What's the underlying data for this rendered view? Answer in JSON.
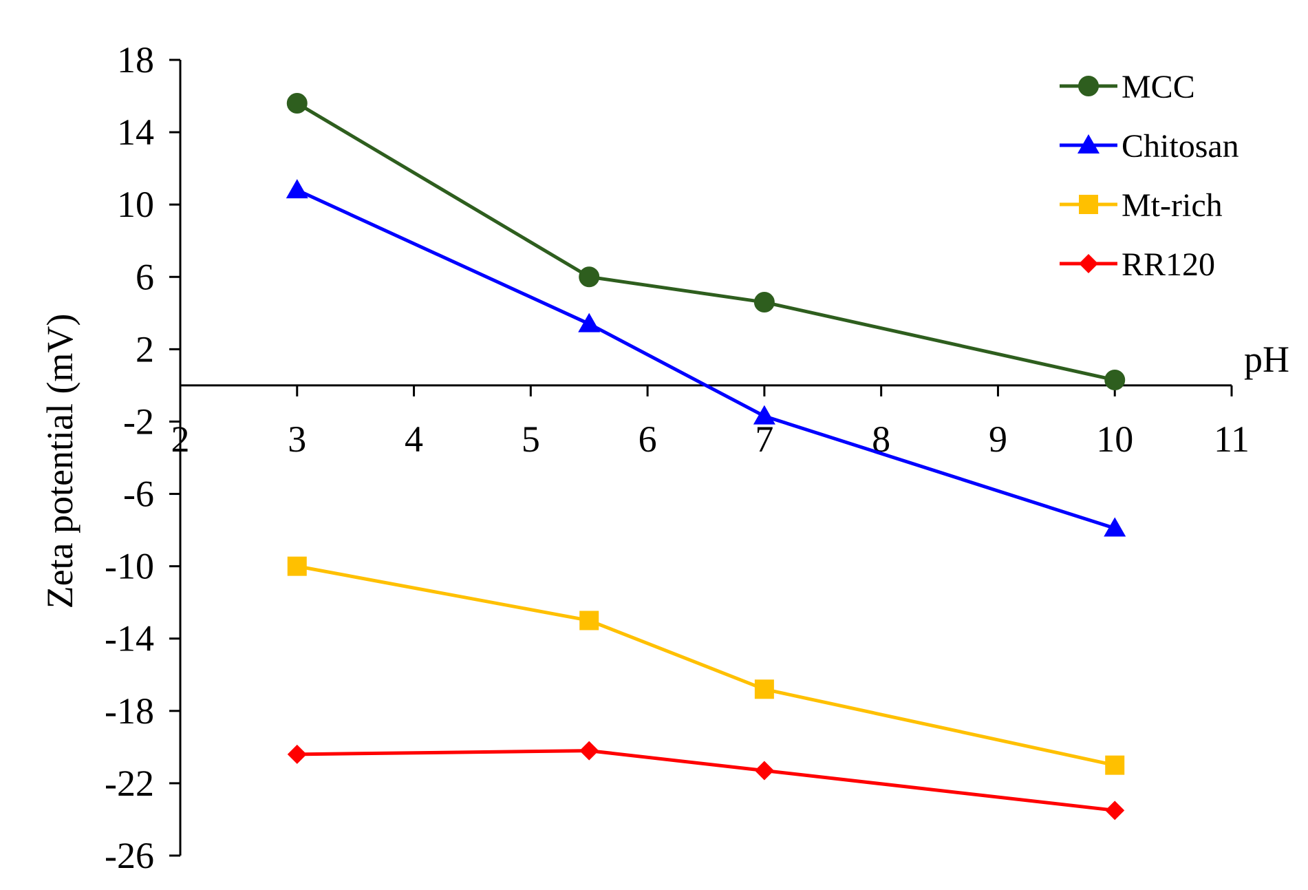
{
  "chart_data": {
    "type": "line",
    "xlabel": "pH",
    "ylabel": "Zeta potential (mV)",
    "xlim": [
      2,
      11
    ],
    "ylim": [
      -26,
      18
    ],
    "xticks": [
      "2",
      "3",
      "4",
      "5",
      "6",
      "7",
      "8",
      "9",
      "10",
      "11"
    ],
    "yticks": [
      "18",
      "14",
      "10",
      "6",
      "2",
      "-2",
      "-6",
      "-10",
      "-14",
      "-18",
      "-22",
      "-26"
    ],
    "x": [
      3,
      5.5,
      7,
      10
    ],
    "x_axis_crosses_y_at": 0,
    "grid": false,
    "legend_position": "top-right",
    "series": [
      {
        "name": "MCC",
        "color": "#2e5e1e",
        "marker": "circle",
        "values": [
          15.6,
          6.0,
          4.6,
          0.3
        ]
      },
      {
        "name": "Chitosan",
        "color": "#0000ff",
        "marker": "triangle",
        "values": [
          10.8,
          3.4,
          -1.7,
          -7.9
        ]
      },
      {
        "name": "Mt-rich",
        "color": "#ffc000",
        "marker": "square",
        "values": [
          -10.0,
          -13.0,
          -16.8,
          -21.0
        ]
      },
      {
        "name": "RR120",
        "color": "#ff0000",
        "marker": "diamond",
        "values": [
          -20.4,
          -20.2,
          -21.3,
          -23.5
        ]
      }
    ]
  }
}
